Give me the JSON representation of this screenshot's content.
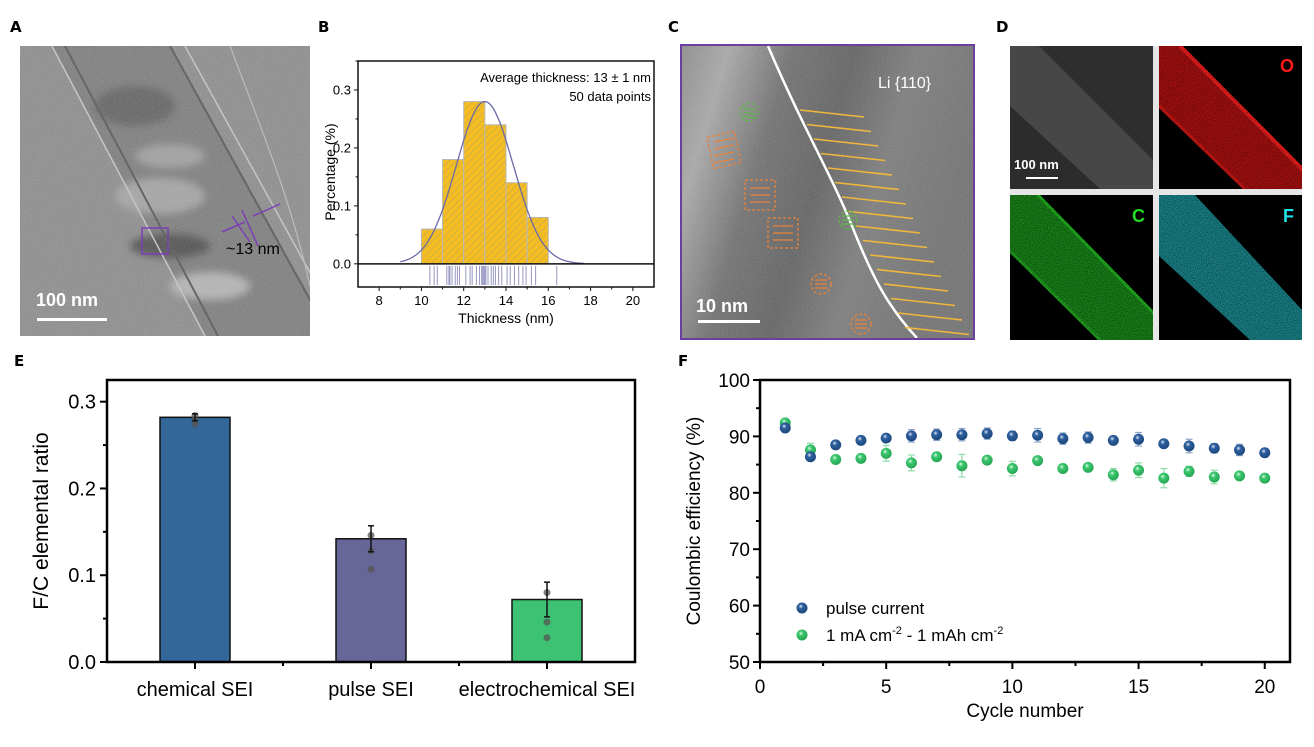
{
  "figure": {
    "panel_labels": [
      "A",
      "B",
      "C",
      "D",
      "E",
      "F"
    ]
  },
  "panelA": {
    "scale_bar": "100 nm",
    "measurement": "~13 nm",
    "annotation_color": "#7b3fb5"
  },
  "panelB": {
    "annotation_line1": "Average thickness: 13 ± 1 nm",
    "annotation_line2": "50 data points"
  },
  "panelC": {
    "scale_bar": "10 nm",
    "lattice_label": "Li {110}",
    "border_color": "#6b3fa0",
    "lattice_color": "#f0b73a",
    "orange_color": "#e8823a",
    "green_color": "#5fb84a"
  },
  "panelD": {
    "scale_bar": "100 nm",
    "maps": [
      {
        "element": "O",
        "color": "#ff1a1a"
      },
      {
        "element": "C",
        "color": "#22dd22"
      },
      {
        "element": "F",
        "color": "#22e0e8"
      }
    ]
  },
  "chart_data": [
    {
      "id": "B",
      "type": "bar",
      "subtype": "histogram",
      "title": "",
      "xlabel": "Thickness (nm)",
      "ylabel": "Percentage (%)",
      "xlim": [
        7,
        21
      ],
      "ylim": [
        -0.04,
        0.35
      ],
      "xticks": [
        "8",
        "10",
        "12",
        "14",
        "16",
        "18",
        "20"
      ],
      "yticks": [
        "0.0",
        "0.1",
        "0.2",
        "0.3"
      ],
      "bins": [
        [
          10,
          11
        ],
        [
          11,
          12
        ],
        [
          12,
          13
        ],
        [
          13,
          14
        ],
        [
          14,
          15
        ],
        [
          15,
          16
        ]
      ],
      "values": [
        0.06,
        0.18,
        0.28,
        0.24,
        0.14,
        0.08
      ],
      "fit": {
        "type": "gaussian",
        "mean": 13.0,
        "sigma": 1.35,
        "peak": 0.28,
        "range": [
          9,
          17.7
        ]
      },
      "rug": [
        10.4,
        10.6,
        10.75,
        11.2,
        11.3,
        11.35,
        11.45,
        11.6,
        11.7,
        11.8,
        12.1,
        12.3,
        12.4,
        12.6,
        12.75,
        12.85,
        12.9,
        12.95,
        13.0,
        13.05,
        13.15,
        13.3,
        13.4,
        13.5,
        13.65,
        13.8,
        14.05,
        14.2,
        14.4,
        14.6,
        14.8,
        14.95,
        15.2,
        15.4,
        16.4
      ],
      "bar_color": "#f5bd1f",
      "fit_color": "#6a6aa8",
      "annotations": [
        "Average thickness: 13 ± 1 nm",
        "50 data points"
      ]
    },
    {
      "id": "E",
      "type": "bar",
      "title": "",
      "xlabel": "",
      "ylabel": "F/C elemental ratio",
      "ylim": [
        0,
        0.325
      ],
      "yticks": [
        "0.0",
        "0.1",
        "0.2",
        "0.3"
      ],
      "categories": [
        "chemical SEI",
        "pulse SEI",
        "electrochemical SEI"
      ],
      "values": [
        0.282,
        0.142,
        0.072
      ],
      "errors": [
        0.004,
        0.015,
        0.02
      ],
      "points": [
        [
          0.284,
          0.279,
          0.274
        ],
        [
          0.146,
          0.128,
          0.107
        ],
        [
          0.08,
          0.046,
          0.028
        ]
      ],
      "colors": [
        "#336699",
        "#666699",
        "#3cc272"
      ]
    },
    {
      "id": "F",
      "type": "scatter",
      "title": "",
      "xlabel": "Cycle number",
      "ylabel": "Coulombic efficiency (%)",
      "xlim": [
        0,
        21
      ],
      "ylim": [
        50,
        100
      ],
      "xticks": [
        "0",
        "5",
        "10",
        "15",
        "20"
      ],
      "yticks": [
        "50",
        "60",
        "70",
        "80",
        "90",
        "100"
      ],
      "legend_position": "bottom-left",
      "x": [
        1,
        2,
        3,
        4,
        5,
        6,
        7,
        8,
        9,
        10,
        11,
        12,
        13,
        14,
        15,
        16,
        17,
        18,
        19,
        20
      ],
      "series": [
        {
          "name": "pulse current",
          "color": "#2e5f9e",
          "values": [
            91.5,
            86.4,
            88.5,
            89.3,
            89.7,
            90.1,
            90.3,
            90.3,
            90.5,
            90.1,
            90.2,
            89.6,
            89.8,
            89.3,
            89.5,
            88.7,
            88.3,
            87.9,
            87.6,
            87.1
          ],
          "errors": [
            0.3,
            0.4,
            0.5,
            0.7,
            0.5,
            1.1,
            1.0,
            1.1,
            1.0,
            0.8,
            1.2,
            1.0,
            1.0,
            0.6,
            1.2,
            0.3,
            1.2,
            0.8,
            1.0,
            0.3
          ]
        },
        {
          "name": "1 mA cm⁻² - 1 mAh cm⁻²",
          "name_parts": [
            "1 mA cm",
            "-2",
            " - 1 mAh cm",
            "-2"
          ],
          "color": "#3cc86e",
          "values": [
            92.4,
            87.6,
            85.9,
            86.1,
            87.0,
            85.3,
            86.4,
            84.8,
            85.8,
            84.3,
            85.7,
            84.3,
            84.5,
            83.2,
            84.0,
            82.6,
            83.8,
            82.8,
            83.0,
            82.6
          ],
          "errors": [
            0.6,
            1.2,
            0.3,
            0.3,
            1.4,
            1.4,
            0.3,
            2.0,
            0.3,
            1.3,
            0.3,
            0.3,
            0.3,
            1.1,
            1.3,
            1.7,
            0.9,
            1.2,
            0.3,
            0.3
          ]
        }
      ]
    }
  ]
}
